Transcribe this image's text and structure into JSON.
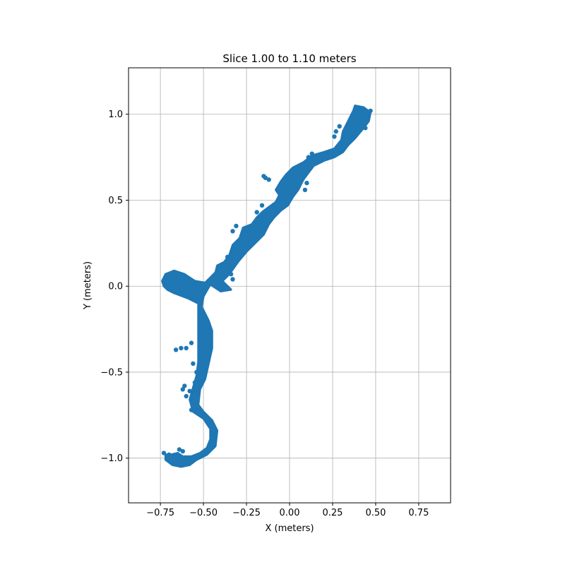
{
  "chart_data": {
    "type": "scatter",
    "title": "Slice 1.00 to 1.10 meters",
    "xlabel": "X (meters)",
    "ylabel": "Y (meters)",
    "xlim": [
      -0.935,
      0.935
    ],
    "ylim": [
      -1.26,
      1.27
    ],
    "xticks": [
      -0.75,
      -0.5,
      -0.25,
      0.0,
      0.25,
      0.5,
      0.75
    ],
    "xtick_labels": [
      "−0.75",
      "−0.50",
      "−0.25",
      "0.00",
      "0.25",
      "0.50",
      "0.75"
    ],
    "yticks": [
      -1.0,
      -0.5,
      0.0,
      0.5,
      1.0
    ],
    "ytick_labels": [
      "−1.0",
      "−0.5",
      "0.0",
      "0.5",
      "1.0"
    ],
    "grid": true,
    "legend": "none",
    "series": [
      {
        "color": "#1f77b4",
        "outline": [
          [
            -0.73,
            0.0
          ],
          [
            -0.74,
            0.03
          ],
          [
            -0.72,
            0.07
          ],
          [
            -0.67,
            0.09
          ],
          [
            -0.61,
            0.07
          ],
          [
            -0.55,
            0.03
          ],
          [
            -0.49,
            0.02
          ],
          [
            -0.46,
            0.05
          ],
          [
            -0.43,
            0.08
          ],
          [
            -0.42,
            0.12
          ],
          [
            -0.38,
            0.14
          ],
          [
            -0.35,
            0.18
          ],
          [
            -0.33,
            0.24
          ],
          [
            -0.29,
            0.28
          ],
          [
            -0.27,
            0.34
          ],
          [
            -0.22,
            0.36
          ],
          [
            -0.19,
            0.4
          ],
          [
            -0.16,
            0.43
          ],
          [
            -0.12,
            0.46
          ],
          [
            -0.08,
            0.49
          ],
          [
            -0.06,
            0.53
          ],
          [
            -0.08,
            0.56
          ],
          [
            -0.05,
            0.61
          ],
          [
            -0.02,
            0.65
          ],
          [
            0.02,
            0.69
          ],
          [
            0.08,
            0.72
          ],
          [
            0.13,
            0.76
          ],
          [
            0.2,
            0.78
          ],
          [
            0.26,
            0.8
          ],
          [
            0.3,
            0.85
          ],
          [
            0.31,
            0.9
          ],
          [
            0.34,
            0.96
          ],
          [
            0.37,
            1.02
          ],
          [
            0.38,
            1.05
          ],
          [
            0.43,
            1.04
          ],
          [
            0.47,
            1.01
          ],
          [
            0.46,
            0.96
          ],
          [
            0.43,
            0.92
          ],
          [
            0.38,
            0.86
          ],
          [
            0.34,
            0.82
          ],
          [
            0.31,
            0.78
          ],
          [
            0.26,
            0.75
          ],
          [
            0.2,
            0.73
          ],
          [
            0.14,
            0.7
          ],
          [
            0.11,
            0.66
          ],
          [
            0.08,
            0.62
          ],
          [
            0.05,
            0.56
          ],
          [
            0.02,
            0.52
          ],
          [
            -0.01,
            0.47
          ],
          [
            -0.05,
            0.44
          ],
          [
            -0.09,
            0.4
          ],
          [
            -0.12,
            0.36
          ],
          [
            -0.15,
            0.3
          ],
          [
            -0.2,
            0.25
          ],
          [
            -0.25,
            0.2
          ],
          [
            -0.3,
            0.14
          ],
          [
            -0.35,
            0.07
          ],
          [
            -0.39,
            0.03
          ],
          [
            -0.34,
            -0.02
          ],
          [
            -0.4,
            -0.03
          ],
          [
            -0.46,
            0.01
          ],
          [
            -0.5,
            -0.06
          ],
          [
            -0.51,
            -0.12
          ],
          [
            -0.47,
            -0.2
          ],
          [
            -0.45,
            -0.26
          ],
          [
            -0.45,
            -0.36
          ],
          [
            -0.47,
            -0.45
          ],
          [
            -0.49,
            -0.54
          ],
          [
            -0.52,
            -0.6
          ],
          [
            -0.53,
            -0.69
          ],
          [
            -0.5,
            -0.73
          ],
          [
            -0.45,
            -0.78
          ],
          [
            -0.42,
            -0.84
          ],
          [
            -0.43,
            -0.93
          ],
          [
            -0.48,
            -0.98
          ],
          [
            -0.54,
            -1.01
          ],
          [
            -0.58,
            -1.04
          ],
          [
            -0.63,
            -1.05
          ],
          [
            -0.68,
            -1.04
          ],
          [
            -0.72,
            -1.01
          ],
          [
            -0.72,
            -0.98
          ],
          [
            -0.69,
            -0.98
          ],
          [
            -0.65,
            -0.97
          ],
          [
            -0.62,
            -0.99
          ],
          [
            -0.57,
            -0.99
          ],
          [
            -0.52,
            -0.97
          ],
          [
            -0.48,
            -0.94
          ],
          [
            -0.46,
            -0.89
          ],
          [
            -0.46,
            -0.83
          ],
          [
            -0.5,
            -0.77
          ],
          [
            -0.56,
            -0.73
          ],
          [
            -0.58,
            -0.66
          ],
          [
            -0.56,
            -0.59
          ],
          [
            -0.54,
            -0.52
          ],
          [
            -0.53,
            -0.44
          ],
          [
            -0.53,
            -0.34
          ],
          [
            -0.53,
            -0.25
          ],
          [
            -0.53,
            -0.17
          ],
          [
            -0.53,
            -0.1
          ],
          [
            -0.59,
            -0.07
          ],
          [
            -0.67,
            -0.04
          ],
          [
            -0.71,
            -0.02
          ]
        ],
        "points": [
          [
            0.27,
            0.9
          ],
          [
            0.26,
            0.87
          ],
          [
            0.29,
            0.93
          ],
          [
            0.44,
            0.92
          ],
          [
            0.47,
            1.02
          ],
          [
            0.11,
            0.75
          ],
          [
            0.13,
            0.77
          ],
          [
            0.09,
            0.56
          ],
          [
            0.1,
            0.6
          ],
          [
            -0.15,
            0.64
          ],
          [
            -0.14,
            0.63
          ],
          [
            -0.12,
            0.62
          ],
          [
            -0.16,
            0.47
          ],
          [
            -0.19,
            0.43
          ],
          [
            -0.33,
            0.32
          ],
          [
            -0.31,
            0.35
          ],
          [
            -0.26,
            0.26
          ],
          [
            -0.36,
            0.17
          ],
          [
            -0.35,
            0.12
          ],
          [
            -0.33,
            0.04
          ],
          [
            -0.34,
            0.07
          ],
          [
            -0.6,
            -0.36
          ],
          [
            -0.63,
            -0.36
          ],
          [
            -0.66,
            -0.37
          ],
          [
            -0.57,
            -0.33
          ],
          [
            -0.56,
            -0.45
          ],
          [
            -0.54,
            -0.5
          ],
          [
            -0.55,
            -0.56
          ],
          [
            -0.58,
            -0.61
          ],
          [
            -0.61,
            -0.58
          ],
          [
            -0.62,
            -0.6
          ],
          [
            -0.6,
            -0.64
          ],
          [
            -0.56,
            -0.7
          ],
          [
            -0.57,
            -0.72
          ],
          [
            -0.55,
            -0.71
          ],
          [
            -0.7,
            -0.98
          ],
          [
            -0.71,
            -0.99
          ],
          [
            -0.73,
            -0.97
          ],
          [
            -0.62,
            -0.96
          ],
          [
            -0.64,
            -0.95
          ]
        ]
      }
    ]
  }
}
